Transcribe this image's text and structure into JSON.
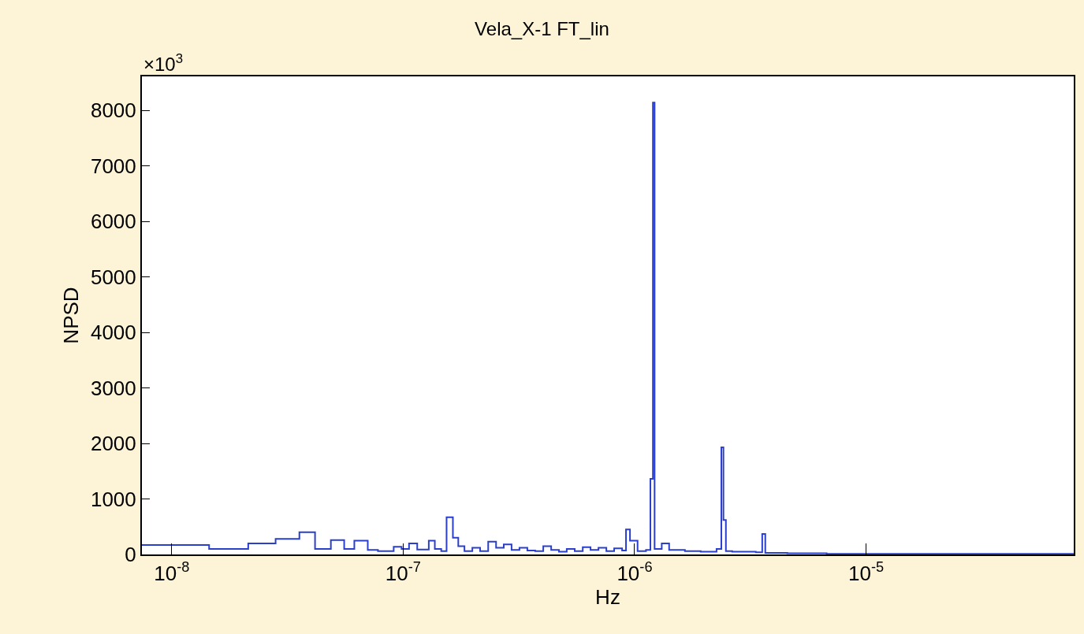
{
  "chart_data": {
    "type": "step",
    "title": "Vela_X-1 FT_lin",
    "xlabel": "Hz",
    "ylabel": "NPSD",
    "annotations": [
      "×10$^{3}$"
    ],
    "log": "x",
    "marker": "none",
    "line_style": "solid",
    "xlim": [
      7.43e-09,
      7.9e-05
    ],
    "xticks": [
      {
        "value": 1e-08,
        "label": "10$^{-8}$"
      },
      {
        "value": 1e-07,
        "label": "10$^{-7}$"
      },
      {
        "value": 1e-06,
        "label": "10$^{-6}$"
      },
      {
        "value": 1e-05,
        "label": "10$^{-5}$"
      }
    ],
    "ylim": [
      0,
      8610
    ],
    "yticks": [
      0,
      1000,
      2000,
      3000,
      4000,
      5000,
      6000,
      7000,
      8000
    ],
    "series": [
      {
        "color": "#2a3fcc",
        "x": [
          7.43e-09,
          1.45e-08,
          2.14e-08,
          2.81e-08,
          3.56e-08,
          4.16e-08,
          4.87e-08,
          5.56e-08,
          6.15e-08,
          7.03e-08,
          7.78e-08,
          9.1e-08,
          9.84e-08,
          1.06e-07,
          1.15e-07,
          1.29e-07,
          1.37e-07,
          1.46e-07,
          1.54e-07,
          1.64e-07,
          1.73e-07,
          1.84e-07,
          1.99e-07,
          2.15e-07,
          2.33e-07,
          2.52e-07,
          2.72e-07,
          2.94e-07,
          3.18e-07,
          3.44e-07,
          3.72e-07,
          4.03e-07,
          4.36e-07,
          4.71e-07,
          5.09e-07,
          5.51e-07,
          5.97e-07,
          6.45e-07,
          6.98e-07,
          7.55e-07,
          8.16e-07,
          8.83e-07,
          9.18e-07,
          9.55e-07,
          1.03e-06,
          1.12e-06,
          1.17e-06,
          1.2e-06,
          1.22e-06,
          1.31e-06,
          1.41e-06,
          1.65e-06,
          1.93e-06,
          2.26e-06,
          2.37e-06,
          2.42e-06,
          2.48e-06,
          2.64e-06,
          3.34e-06,
          3.56e-06,
          3.67e-06,
          4.57e-06,
          6.76e-06,
          7.9e-05
        ],
        "values": [
          170,
          100,
          200,
          280,
          400,
          100,
          260,
          100,
          250,
          80,
          60,
          140,
          100,
          200,
          90,
          250,
          100,
          60,
          670,
          300,
          150,
          60,
          120,
          60,
          230,
          120,
          180,
          80,
          120,
          70,
          60,
          150,
          80,
          50,
          100,
          60,
          130,
          80,
          120,
          60,
          110,
          70,
          450,
          250,
          60,
          80,
          1360,
          8140,
          100,
          200,
          80,
          60,
          50,
          100,
          1930,
          620,
          60,
          50,
          40,
          370,
          30,
          20,
          10,
          10
        ]
      }
    ]
  }
}
